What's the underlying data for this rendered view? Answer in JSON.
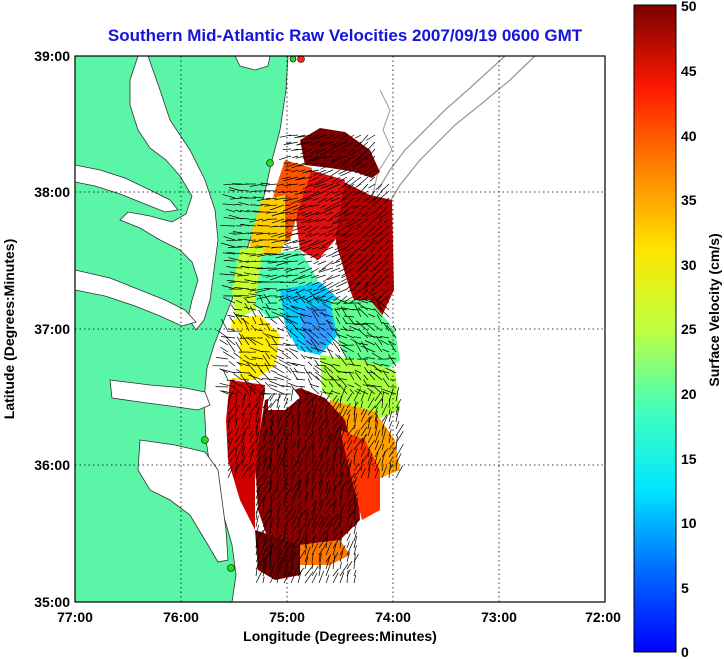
{
  "title": "Southern Mid-Atlantic Raw Velocities 2007/09/19 0600 GMT",
  "x_axis": {
    "label": "Longitude (Degrees:Minutes)",
    "ticks": [
      "77:00",
      "76:00",
      "75:00",
      "74:00",
      "73:00",
      "72:00"
    ]
  },
  "y_axis": {
    "label": "Latitude (Degrees:Minutes)",
    "ticks": [
      "39:00",
      "38:00",
      "37:00",
      "36:00",
      "35:00"
    ]
  },
  "colorbar": {
    "label": "Surface Velocity (cm/s)",
    "ticks": [
      "50",
      "45",
      "40",
      "35",
      "30",
      "25",
      "20",
      "15",
      "10",
      "5",
      "0"
    ],
    "range": [
      0,
      50
    ]
  },
  "colors": {
    "land": "#5af5a6",
    "water": "#ffffff",
    "title": "#1515d8",
    "station": "#22dd22"
  },
  "map_extent": {
    "lon_range": [
      -77.0,
      -72.0
    ],
    "lat_range": [
      35.0,
      39.0
    ],
    "grid": "dotted"
  }
}
